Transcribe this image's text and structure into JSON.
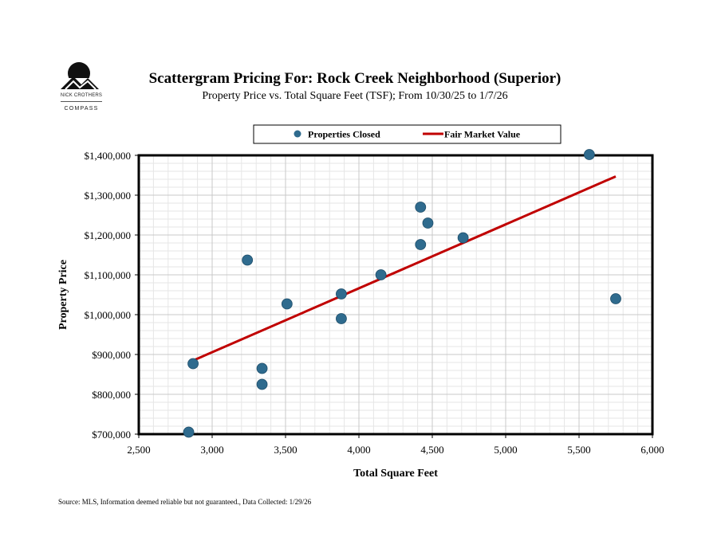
{
  "logo": {
    "name": "NICK CROTHERS",
    "brand": "COMPASS"
  },
  "header": {
    "title": "Scattergram Pricing For: Rock Creek Neighborhood (Superior)",
    "subtitle": "Property Price vs. Total Square Feet (TSF); From 10/30/25 to 1/7/26"
  },
  "footer": {
    "source": "Source: MLS, Information deemed reliable but not guaranteed., Data Collected: 1/29/26"
  },
  "colors": {
    "points": "#2f6b8e",
    "trend": "#c00000",
    "grid": "#c8c8c8",
    "minor_grid": "#e6e6e6"
  },
  "chart_data": {
    "type": "scatter",
    "xlabel": "Total Square Feet",
    "ylabel": "Property Price",
    "xlim": [
      2500,
      6000
    ],
    "ylim": [
      700000,
      1400000
    ],
    "xticks": [
      2500,
      3000,
      3500,
      4000,
      4500,
      5000,
      5500,
      6000
    ],
    "xtick_labels": [
      "2,500",
      "3,000",
      "3,500",
      "4,000",
      "4,500",
      "5,000",
      "5,500",
      "6,000"
    ],
    "yticks": [
      700000,
      800000,
      900000,
      1000000,
      1100000,
      1200000,
      1300000,
      1400000
    ],
    "ytick_labels": [
      "$700,000",
      "$800,000",
      "$900,000",
      "$1,000,000",
      "$1,100,000",
      "$1,200,000",
      "$1,300,000",
      "$1,400,000"
    ],
    "grid": true,
    "legend": {
      "position": "top",
      "entries": [
        "Properties Closed",
        "Fair Market Value"
      ]
    },
    "series": [
      {
        "name": "Properties Closed",
        "kind": "scatter",
        "points": [
          [
            2840,
            705000
          ],
          [
            2870,
            877000
          ],
          [
            3240,
            1137000
          ],
          [
            3340,
            865000
          ],
          [
            3340,
            825000
          ],
          [
            3510,
            1027000
          ],
          [
            3880,
            1052000
          ],
          [
            3880,
            990000
          ],
          [
            4150,
            1100000
          ],
          [
            4420,
            1270000
          ],
          [
            4420,
            1176000
          ],
          [
            4470,
            1230000
          ],
          [
            4710,
            1193000
          ],
          [
            5570,
            1402000
          ],
          [
            5750,
            1040000
          ]
        ]
      },
      {
        "name": "Fair Market Value",
        "kind": "line",
        "points": [
          [
            2840,
            880000
          ],
          [
            5750,
            1347000
          ]
        ]
      }
    ]
  }
}
